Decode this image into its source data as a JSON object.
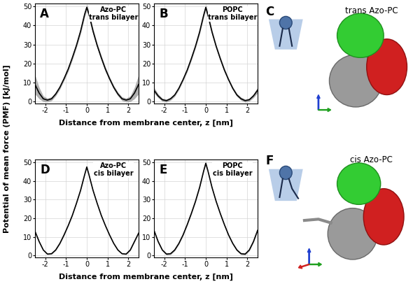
{
  "y_label": "Potential of mean force (PMF) [kJ/mol]",
  "chart_data": [
    {
      "type": "line",
      "panel": "A",
      "annotation": "Azo-PC\ntrans bilayer",
      "x_label": "Distance from membrane center, z [nm]",
      "x": [
        -2.5,
        -2.3,
        -2.1,
        -1.9,
        -1.7,
        -1.5,
        -1.3,
        -1.1,
        -0.9,
        -0.7,
        -0.5,
        -0.3,
        -0.1,
        0,
        0.1,
        0.3,
        0.5,
        0.7,
        0.9,
        1.1,
        1.3,
        1.5,
        1.7,
        1.9,
        2.1,
        2.3,
        2.5
      ],
      "values": [
        9,
        4.5,
        1.5,
        0.8,
        1.5,
        4,
        7.5,
        12,
        17,
        23,
        29.5,
        37,
        46,
        49.5,
        46,
        37,
        29.5,
        23,
        17,
        12,
        7.5,
        4,
        1.5,
        0.8,
        1.5,
        4.5,
        9
      ],
      "error": [
        5,
        3,
        1.5,
        1,
        1,
        1,
        1,
        1,
        1.2,
        1.2,
        1.2,
        1.5,
        1.5,
        1.5,
        1.5,
        1.5,
        1.2,
        1.2,
        1.2,
        1,
        1,
        1,
        1,
        1,
        1.5,
        3,
        5
      ],
      "color": "#000000",
      "xlim": [
        -2.5,
        2.5
      ],
      "xticks": [
        -2,
        -1,
        0,
        1,
        2
      ],
      "ylim": [
        -1,
        51.5
      ],
      "yticks": [
        0,
        10,
        20,
        30,
        40,
        50
      ],
      "grid": true
    },
    {
      "type": "line",
      "panel": "B",
      "annotation": "POPC\ntrans bilayer",
      "x": [
        -2.5,
        -2.3,
        -2.1,
        -1.9,
        -1.7,
        -1.5,
        -1.3,
        -1.1,
        -0.9,
        -0.7,
        -0.5,
        -0.3,
        -0.1,
        0,
        0.1,
        0.3,
        0.5,
        0.7,
        0.9,
        1.1,
        1.3,
        1.5,
        1.7,
        1.9,
        2.1,
        2.3,
        2.5
      ],
      "values": [
        6,
        3,
        1,
        0.5,
        1.5,
        3.5,
        7,
        11.5,
        16.5,
        22.5,
        29,
        36.5,
        45.5,
        49.5,
        45.5,
        36.5,
        29,
        22.5,
        16.5,
        11.5,
        7,
        3.5,
        1.5,
        0.5,
        1,
        3,
        6
      ],
      "error": [
        1.5,
        1,
        0.8,
        0.8,
        0.8,
        0.8,
        0.8,
        0.8,
        1,
        1,
        1,
        1.2,
        1.2,
        1.2,
        1.2,
        1.2,
        1,
        1,
        1,
        0.8,
        0.8,
        0.8,
        0.8,
        0.8,
        0.8,
        1,
        1.5
      ],
      "color": "#000000",
      "xlim": [
        -2.5,
        2.5
      ],
      "xticks": [
        -2,
        -1,
        0,
        1,
        2
      ],
      "ylim": [
        -1,
        51.5
      ],
      "yticks": [
        0,
        10,
        20,
        30,
        40,
        50
      ],
      "grid": true
    },
    {
      "type": "line",
      "panel": "D",
      "annotation": "Azo-PC\ncis bilayer",
      "x_label": "Distance from membrane center, z [nm]",
      "x": [
        -2.5,
        -2.3,
        -2.1,
        -1.9,
        -1.7,
        -1.5,
        -1.3,
        -1.1,
        -0.9,
        -0.7,
        -0.5,
        -0.3,
        -0.1,
        0,
        0.1,
        0.3,
        0.5,
        0.7,
        0.9,
        1.1,
        1.3,
        1.5,
        1.7,
        1.9,
        2.1,
        2.3,
        2.5
      ],
      "values": [
        13,
        7.5,
        3,
        0.8,
        1,
        3,
        6.5,
        11,
        16,
        21.5,
        28,
        35,
        43.5,
        47.5,
        43.5,
        35,
        28,
        21.5,
        16,
        11,
        6.5,
        3,
        1,
        0.8,
        3,
        7.5,
        12
      ],
      "error": [
        0.3,
        0.3,
        0.3,
        0.3,
        0.3,
        0.3,
        0.3,
        0.3,
        0.3,
        0.3,
        0.3,
        0.3,
        0.3,
        0.3,
        0.3,
        0.3,
        0.3,
        0.3,
        0.3,
        0.3,
        0.3,
        0.3,
        0.3,
        0.3,
        0.3,
        0.3,
        0.3
      ],
      "color": "#000000",
      "xlim": [
        -2.5,
        2.5
      ],
      "xticks": [
        -2,
        -1,
        0,
        1,
        2
      ],
      "ylim": [
        -1,
        51.5
      ],
      "yticks": [
        0,
        10,
        20,
        30,
        40,
        50
      ],
      "grid": true
    },
    {
      "type": "line",
      "panel": "E",
      "annotation": "POPC\ncis bilayer",
      "x": [
        -2.5,
        -2.3,
        -2.1,
        -1.9,
        -1.7,
        -1.5,
        -1.3,
        -1.1,
        -0.9,
        -0.7,
        -0.5,
        -0.3,
        -0.1,
        0,
        0.1,
        0.3,
        0.5,
        0.7,
        0.9,
        1.1,
        1.3,
        1.5,
        1.7,
        1.9,
        2.1,
        2.3,
        2.5
      ],
      "values": [
        13.5,
        7.5,
        3,
        0.8,
        1,
        3,
        6.5,
        11,
        16.5,
        22.5,
        29,
        36.5,
        45.5,
        49.5,
        45.5,
        36.5,
        29,
        22.5,
        16.5,
        11,
        6.5,
        3,
        1,
        0.8,
        3,
        7.5,
        13.5
      ],
      "error": [
        0.5,
        0.5,
        0.5,
        0.5,
        0.5,
        0.5,
        0.5,
        0.5,
        0.5,
        0.5,
        0.5,
        0.5,
        0.5,
        0.5,
        0.5,
        0.5,
        0.5,
        0.5,
        0.5,
        0.5,
        0.5,
        0.5,
        0.5,
        0.5,
        0.5,
        0.5,
        0.5
      ],
      "color": "#000000",
      "xlim": [
        -2.5,
        2.5
      ],
      "xticks": [
        -2,
        -1,
        0,
        1,
        2
      ],
      "ylim": [
        -1,
        51.5
      ],
      "yticks": [
        0,
        10,
        20,
        30,
        40,
        50
      ],
      "grid": true
    }
  ],
  "panels": [
    {
      "panel": "C",
      "title": "trans Azo-PC"
    },
    {
      "panel": "F",
      "title": "cis Azo-PC"
    }
  ]
}
